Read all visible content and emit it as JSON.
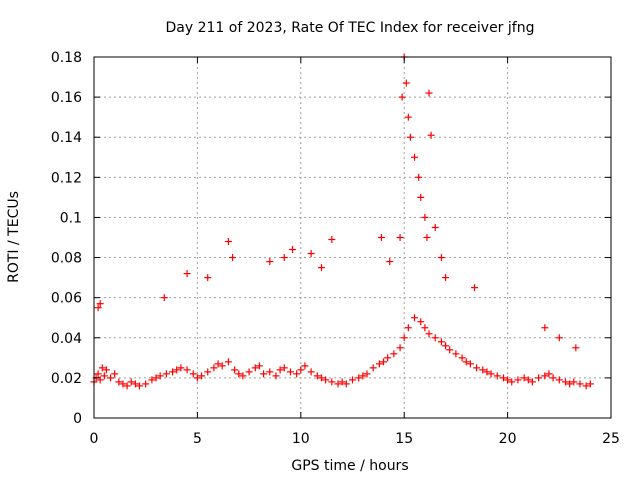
{
  "chart_data": {
    "type": "scatter",
    "title": "Day 211 of 2023, Rate Of TEC Index for receiver jfng",
    "xlabel": "GPS time / hours",
    "ylabel": "ROTI / TECUs",
    "xlim": [
      0,
      25
    ],
    "ylim": [
      0,
      0.18
    ],
    "xticks": [
      0,
      5,
      10,
      15,
      20,
      25
    ],
    "xtick_labels": [
      "0",
      "5",
      "10",
      "15",
      "20",
      "25"
    ],
    "yticks": [
      0,
      0.02,
      0.04,
      0.06,
      0.08,
      0.1,
      0.12,
      0.14,
      0.16,
      0.18
    ],
    "ytick_labels": [
      "0",
      "0.02",
      "0.04",
      "0.06",
      "0.08",
      "0.1",
      "0.12",
      "0.14",
      "0.16",
      "0.18"
    ],
    "grid": true,
    "marker": "+",
    "color": "#ff0000",
    "series": [
      {
        "name": "ROTI",
        "x": [
          0.0,
          0.1,
          0.2,
          0.3,
          0.4,
          0.5,
          0.6,
          0.8,
          1.0,
          1.2,
          1.4,
          1.6,
          1.8,
          2.0,
          2.2,
          2.5,
          2.8,
          3.0,
          3.2,
          3.5,
          3.8,
          4.0,
          4.2,
          4.5,
          4.8,
          5.0,
          5.2,
          5.5,
          5.8,
          6.0,
          6.2,
          6.5,
          6.8,
          7.0,
          7.2,
          7.5,
          7.8,
          8.0,
          8.2,
          8.5,
          8.8,
          9.0,
          9.2,
          9.5,
          9.8,
          10.0,
          10.2,
          10.5,
          10.8,
          11.0,
          11.2,
          11.5,
          11.8,
          12.0,
          12.2,
          12.5,
          12.8,
          13.0,
          13.2,
          13.5,
          13.8,
          14.0,
          14.2,
          14.5,
          14.8,
          15.0,
          15.2,
          15.5,
          15.8,
          16.0,
          16.2,
          16.5,
          16.8,
          17.0,
          17.2,
          17.5,
          17.8,
          18.0,
          18.2,
          18.5,
          18.8,
          19.0,
          19.2,
          19.5,
          19.8,
          20.0,
          20.2,
          20.5,
          20.8,
          21.0,
          21.2,
          21.5,
          21.8,
          22.0,
          22.2,
          22.5,
          22.8,
          23.0,
          23.2,
          23.5,
          23.8,
          24.0,
          0.2,
          0.3,
          3.4,
          4.5,
          5.5,
          6.5,
          6.7,
          8.5,
          9.2,
          9.6,
          10.5,
          11.0,
          11.5,
          13.9,
          14.3,
          14.8,
          14.9,
          15.0,
          15.1,
          15.2,
          15.3,
          15.5,
          15.7,
          15.8,
          16.0,
          16.1,
          16.2,
          16.3,
          16.5,
          16.8,
          17.0,
          18.4,
          21.8,
          22.5,
          23.3
        ],
        "y": [
          0.018,
          0.02,
          0.022,
          0.019,
          0.025,
          0.021,
          0.024,
          0.02,
          0.022,
          0.018,
          0.017,
          0.016,
          0.018,
          0.017,
          0.016,
          0.017,
          0.019,
          0.02,
          0.021,
          0.022,
          0.023,
          0.024,
          0.025,
          0.024,
          0.022,
          0.02,
          0.021,
          0.023,
          0.025,
          0.027,
          0.026,
          0.028,
          0.024,
          0.022,
          0.021,
          0.023,
          0.025,
          0.026,
          0.022,
          0.023,
          0.021,
          0.024,
          0.025,
          0.023,
          0.022,
          0.024,
          0.026,
          0.023,
          0.021,
          0.02,
          0.019,
          0.018,
          0.017,
          0.018,
          0.017,
          0.019,
          0.02,
          0.021,
          0.022,
          0.025,
          0.027,
          0.028,
          0.03,
          0.032,
          0.035,
          0.04,
          0.045,
          0.05,
          0.048,
          0.045,
          0.042,
          0.04,
          0.038,
          0.036,
          0.034,
          0.032,
          0.03,
          0.028,
          0.027,
          0.025,
          0.024,
          0.023,
          0.022,
          0.021,
          0.02,
          0.019,
          0.018,
          0.019,
          0.02,
          0.019,
          0.018,
          0.02,
          0.021,
          0.022,
          0.02,
          0.019,
          0.018,
          0.017,
          0.018,
          0.017,
          0.016,
          0.017,
          0.055,
          0.057,
          0.06,
          0.072,
          0.07,
          0.088,
          0.08,
          0.078,
          0.08,
          0.084,
          0.082,
          0.075,
          0.089,
          0.09,
          0.078,
          0.09,
          0.16,
          0.18,
          0.167,
          0.15,
          0.14,
          0.13,
          0.12,
          0.11,
          0.1,
          0.09,
          0.162,
          0.141,
          0.095,
          0.08,
          0.07,
          0.065,
          0.045,
          0.04,
          0.035
        ]
      }
    ]
  }
}
